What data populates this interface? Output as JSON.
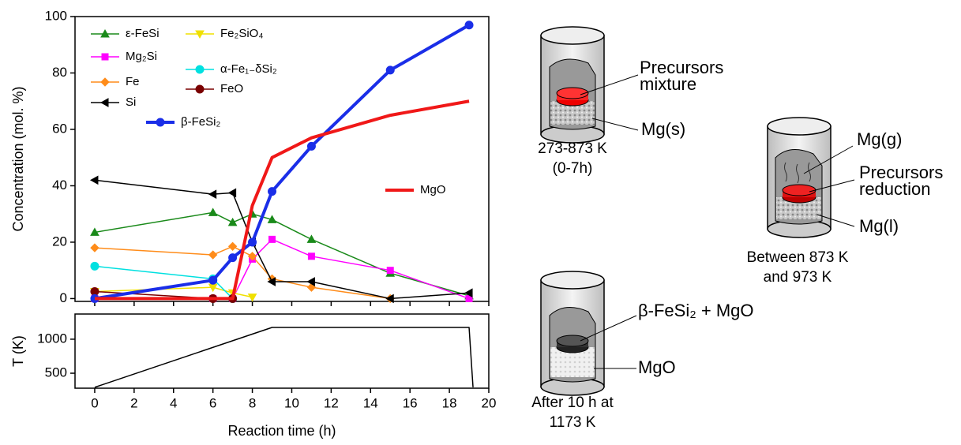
{
  "chart_data": [
    {
      "type": "line",
      "y_label": "Concentration (mol. %)",
      "x": [
        0,
        6,
        7,
        8,
        9,
        11,
        15,
        19
      ],
      "xlim": [
        -1,
        20
      ],
      "xticks": [
        0,
        2,
        4,
        6,
        8,
        10,
        12,
        14,
        16,
        18,
        20
      ],
      "ylim": [
        -1,
        100
      ],
      "yticks": [
        0,
        20,
        40,
        60,
        80,
        100
      ],
      "series": [
        {
          "name": "ε-FeSi",
          "color": "#1a8a1a",
          "marker": "triangle-up",
          "values": [
            23.5,
            30.5,
            27,
            30,
            28,
            21,
            9,
            1
          ]
        },
        {
          "name": "Mg₂Si",
          "color": "#ff00ff",
          "marker": "square",
          "values": [
            0,
            0,
            0,
            14,
            21,
            15,
            10,
            0
          ]
        },
        {
          "name": "Fe",
          "color": "#ff8c1a",
          "marker": "diamond",
          "values": [
            18,
            15.5,
            18.5,
            15,
            7,
            4,
            0,
            null
          ]
        },
        {
          "name": "Si",
          "color": "#000000",
          "marker": "triangle-left",
          "values": [
            42,
            37,
            37.5,
            20,
            6,
            6,
            0,
            2
          ]
        },
        {
          "name": "Fe₂SiO₄",
          "color": "#f0e000",
          "marker": "triangle-down",
          "values": [
            2.5,
            4,
            2,
            0.5,
            null,
            null,
            null,
            null
          ]
        },
        {
          "name": "α-Fe₁₋δSi₂",
          "color": "#00e0e0",
          "marker": "circle",
          "values": [
            11.5,
            7,
            0,
            null,
            null,
            null,
            null,
            null
          ]
        },
        {
          "name": "FeO",
          "color": "#7a0000",
          "marker": "circle",
          "values": [
            2.5,
            0,
            0,
            null,
            null,
            null,
            null,
            null
          ]
        },
        {
          "name": "β-FeSi₂",
          "color": "#1a2ee8",
          "marker": "circle",
          "thick": true,
          "values": [
            0,
            6.5,
            14.5,
            20,
            38,
            54,
            81,
            97
          ]
        },
        {
          "name": "MgO",
          "color": "#f01818",
          "marker": "none",
          "thick": true,
          "values": [
            0,
            0,
            0,
            33,
            50,
            57,
            65,
            70
          ]
        }
      ]
    },
    {
      "type": "line",
      "x_label": "Reaction time (h)",
      "y_label": "T (K)",
      "x": [
        0,
        9,
        19,
        19.2
      ],
      "xlim": [
        -1,
        20
      ],
      "xticks": [
        0,
        2,
        4,
        6,
        8,
        10,
        12,
        14,
        16,
        18,
        20
      ],
      "ylim": [
        280,
        1370
      ],
      "yticks": [
        500,
        1000
      ],
      "series": [
        {
          "color": "#000000",
          "values": [
            293,
            1173,
            1173,
            293
          ]
        }
      ]
    }
  ],
  "diagrams": [
    {
      "labels": [
        [
          "Precursors",
          "mixture"
        ],
        [
          "Mg(s)"
        ]
      ],
      "caption": [
        "273-873 K",
        "(0-7h)"
      ]
    },
    {
      "labels": [
        [
          "Mg(g)"
        ],
        [
          "Precursors",
          "reduction"
        ],
        [
          "Mg(l)"
        ]
      ],
      "caption": [
        "Between 873 K",
        "and 973 K"
      ]
    },
    {
      "labels": [
        [
          "β-FeSi₂ + MgO"
        ],
        [
          "MgO"
        ]
      ],
      "caption": [
        "After 10 h at",
        "1173 K"
      ]
    }
  ]
}
